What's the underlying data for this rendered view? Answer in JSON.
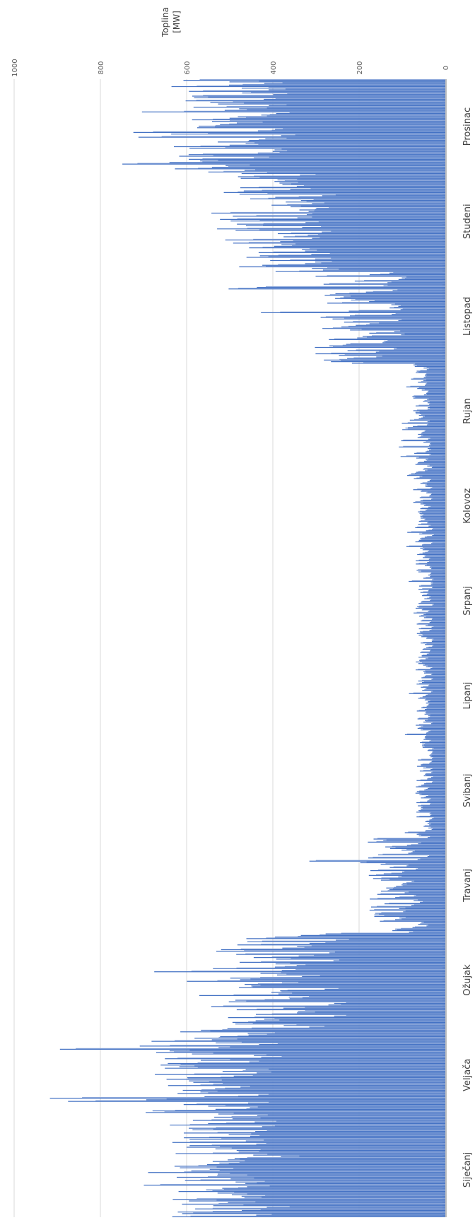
{
  "chart_data": {
    "type": "area",
    "orientation": "rotated-90",
    "ylabel": [
      "Toplina",
      "[MW]"
    ],
    "ylim": [
      0,
      1000
    ],
    "yticks": [
      0,
      200,
      400,
      600,
      800,
      1000
    ],
    "grid": true,
    "series": [
      {
        "name": "",
        "color": "#4472c4"
      },
      {
        "name": "",
        "color": "#8faadc"
      }
    ],
    "categories": [
      "Siječanj",
      "Veljača",
      "Ožujak",
      "Travanj",
      "Svibanj",
      "Lipanj",
      "Srpanj",
      "Kolovoz",
      "Rujan",
      "Listopad",
      "Studeni",
      "Prosinac"
    ],
    "monthly_envelope": [
      {
        "month": "Siječanj",
        "low": 380,
        "high": 640,
        "peak": 740
      },
      {
        "month": "Veljača",
        "low": 420,
        "high": 700,
        "peak": 970
      },
      {
        "month": "Ožujak",
        "low": 250,
        "high": 550,
        "peak": 680
      },
      {
        "month": "Travanj",
        "low": 40,
        "high": 180,
        "peak": 320
      },
      {
        "month": "Svibanj",
        "low": 30,
        "high": 70,
        "peak": 95
      },
      {
        "month": "Lipanj",
        "low": 30,
        "high": 70,
        "peak": 95
      },
      {
        "month": "Srpanj",
        "low": 30,
        "high": 70,
        "peak": 90
      },
      {
        "month": "Kolovoz",
        "low": 30,
        "high": 70,
        "peak": 95
      },
      {
        "month": "Rujan",
        "low": 35,
        "high": 80,
        "peak": 110
      },
      {
        "month": "Listopad",
        "low": 100,
        "high": 320,
        "peak": 540
      },
      {
        "month": "Studeni",
        "low": 280,
        "high": 520,
        "peak": 620
      },
      {
        "month": "Prosinac",
        "low": 380,
        "high": 640,
        "peak": 760
      }
    ]
  }
}
